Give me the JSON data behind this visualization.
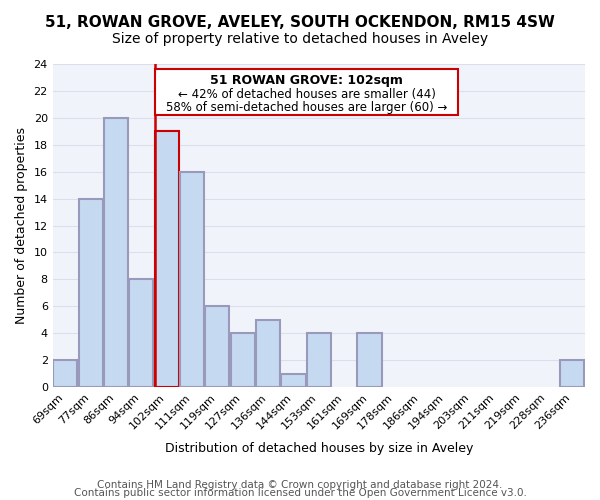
{
  "title": "51, ROWAN GROVE, AVELEY, SOUTH OCKENDON, RM15 4SW",
  "subtitle": "Size of property relative to detached houses in Aveley",
  "xlabel": "Distribution of detached houses by size in Aveley",
  "ylabel": "Number of detached properties",
  "bin_labels": [
    "69sqm",
    "77sqm",
    "86sqm",
    "94sqm",
    "102sqm",
    "111sqm",
    "119sqm",
    "127sqm",
    "136sqm",
    "144sqm",
    "153sqm",
    "161sqm",
    "169sqm",
    "178sqm",
    "186sqm",
    "194sqm",
    "203sqm",
    "211sqm",
    "219sqm",
    "228sqm",
    "236sqm"
  ],
  "bar_heights": [
    2,
    14,
    20,
    8,
    19,
    16,
    6,
    4,
    5,
    1,
    4,
    0,
    4,
    0,
    0,
    0,
    0,
    0,
    0,
    0,
    2
  ],
  "highlight_index": 4,
  "highlight_color": "#cc0000",
  "bar_color": "#c5d9f1",
  "bar_edge_color": "#aaaacc",
  "ylim": [
    0,
    24
  ],
  "yticks": [
    0,
    2,
    4,
    6,
    8,
    10,
    12,
    14,
    16,
    18,
    20,
    22,
    24
  ],
  "annotation_title": "51 ROWAN GROVE: 102sqm",
  "annotation_line1": "← 42% of detached houses are smaller (44)",
  "annotation_line2": "58% of semi-detached houses are larger (60) →",
  "footer1": "Contains HM Land Registry data © Crown copyright and database right 2024.",
  "footer2": "Contains public sector information licensed under the Open Government Licence v3.0.",
  "title_fontsize": 11,
  "subtitle_fontsize": 10,
  "axis_label_fontsize": 9,
  "tick_fontsize": 8,
  "annotation_fontsize": 9,
  "footer_fontsize": 7.5
}
